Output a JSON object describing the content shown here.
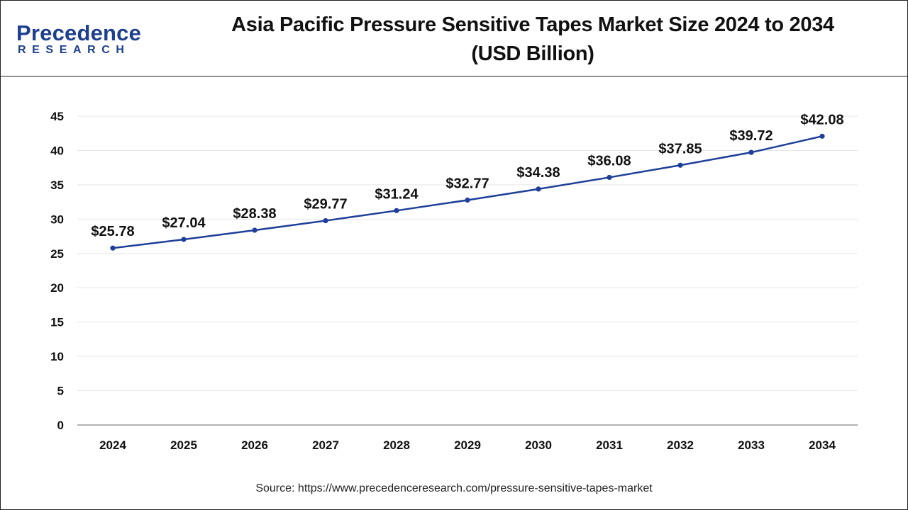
{
  "brand": {
    "logo_main": "Precedence",
    "logo_sub": "RESEARCH",
    "color": "#1d3f8f"
  },
  "header": {
    "title_line1": "Asia Pacific Pressure Sensitive Tapes Market Size 2024 to 2034",
    "title_line2": "(USD Billion)"
  },
  "footer": {
    "source": "Source: https://www.precedenceresearch.com/pressure-sensitive-tapes-market"
  },
  "chart_data": {
    "type": "line",
    "title": "Asia Pacific Pressure Sensitive Tapes Market Size 2024 to 2034 (USD Billion)",
    "xlabel": "",
    "ylabel": "",
    "categories": [
      "2024",
      "2025",
      "2026",
      "2027",
      "2028",
      "2029",
      "2030",
      "2031",
      "2032",
      "2033",
      "2034"
    ],
    "series": [
      {
        "values": [
          25.78,
          27.04,
          28.38,
          29.77,
          31.24,
          32.77,
          34.38,
          36.08,
          37.85,
          39.72,
          42.08
        ],
        "labels": [
          "$25.78",
          "$27.04",
          "$28.38",
          "$29.77",
          "$31.24",
          "$32.77",
          "$34.38",
          "$36.08",
          "$37.85",
          "$39.72",
          "$42.08"
        ],
        "color": "#1e3f99"
      }
    ],
    "ylim": [
      0,
      45
    ],
    "yticks": [
      "0",
      "5",
      "10",
      "15",
      "20",
      "25",
      "30",
      "35",
      "40",
      "45"
    ],
    "grid": true,
    "grid_color": "#e6e6e6",
    "legend": "none"
  }
}
